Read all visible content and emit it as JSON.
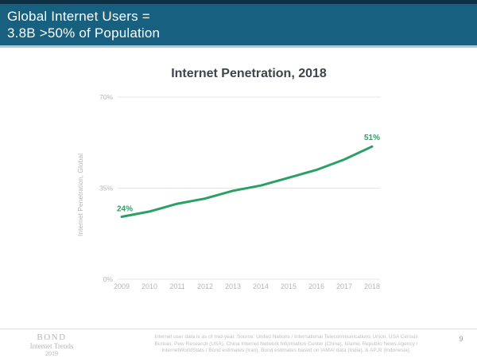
{
  "header": {
    "line1": "Global Internet Users =",
    "line2": "3.8B >50% of Population"
  },
  "chart_data": {
    "type": "line",
    "title": "Internet Penetration, 2018",
    "ylabel": "Internet Penetration, Global",
    "xlabel": "",
    "categories": [
      "2009",
      "2010",
      "2011",
      "2012",
      "2013",
      "2014",
      "2015",
      "2016",
      "2017",
      "2018"
    ],
    "values": [
      24,
      26,
      29,
      31,
      34,
      36,
      39,
      42,
      46,
      51
    ],
    "ylim": [
      0,
      70
    ],
    "yticks": [
      0,
      35,
      70
    ],
    "ytick_labels": [
      "0%",
      "35%",
      "70%"
    ],
    "first_point_label": "24%",
    "last_point_label": "51%",
    "line_color": "#2aa163",
    "grid": true,
    "legend_position": "none"
  },
  "footer": {
    "logo_line1": "BOND",
    "logo_line2": "Internet Trends",
    "logo_line3": "2019",
    "source_line1": "Internet user data is as of mid-year.  Source: United Nations / International Telecommunications Union, USA Census",
    "source_line2": "Bureau, Pew Research (USA), China Internet Network Information Center (China), Islamic Republic News Agency /",
    "source_line3": "InternetWorldStats / Bond estimates (Iran), Bond estimates based on IAMAI data (India), & APJII (Indonesia).",
    "page_number": "9"
  },
  "colors": {
    "header_bg": "#17607f",
    "top_strip": "#0e3044",
    "line_green": "#2aa163",
    "grid_line": "#e4e4e4",
    "tick_text": "#b5b5b5"
  }
}
